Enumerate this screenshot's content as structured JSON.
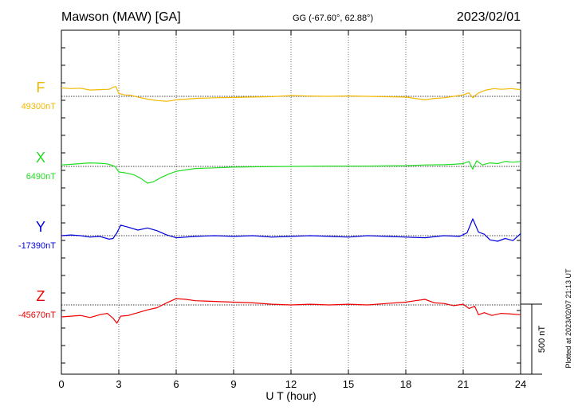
{
  "header": {
    "station": "Mawson (MAW)  [GA]",
    "coords": "GG (-67.60°,  62.88°)",
    "date": "2023/02/01"
  },
  "footer_note": "Plotted at 2023/02/07 21:13 UT",
  "chart_data": {
    "type": "line",
    "xlabel": "U T (hour)",
    "xlim": [
      0,
      24
    ],
    "x_ticks": [
      "0",
      "3",
      "6",
      "9",
      "12",
      "15",
      "18",
      "21",
      "24"
    ],
    "grid": "dotted vertical every 3 h",
    "scale_bar": {
      "value": 500,
      "label": "500 nT"
    },
    "series": [
      {
        "name": "F",
        "baseline_label": "49300nT",
        "baseline_nT": 49300,
        "color": "#f2b800",
        "x": [
          0,
          0.5,
          1,
          1.5,
          2,
          2.5,
          2.7,
          2.85,
          3,
          3.3,
          3.6,
          4,
          4.5,
          5,
          5.5,
          5.8,
          6,
          7,
          8,
          9,
          10,
          11,
          12,
          13,
          14,
          15,
          16,
          17,
          18,
          18.5,
          19,
          19.5,
          20,
          20.5,
          21,
          21.3,
          21.5,
          21.7,
          21.9,
          22.2,
          22.6,
          23,
          23.5,
          24
        ],
        "values": [
          60,
          55,
          58,
          45,
          48,
          50,
          65,
          70,
          20,
          10,
          8,
          -5,
          -20,
          -30,
          -35,
          -30,
          -25,
          -15,
          -10,
          -8,
          -5,
          -2,
          5,
          2,
          0,
          3,
          0,
          -3,
          -5,
          -15,
          -25,
          -15,
          -10,
          0,
          10,
          25,
          -10,
          15,
          30,
          45,
          55,
          50,
          55,
          48
        ]
      },
      {
        "name": "X",
        "baseline_label": "6490nT",
        "baseline_nT": 6490,
        "color": "#22dd22",
        "x": [
          0,
          0.5,
          1,
          1.5,
          2,
          2.4,
          2.8,
          3,
          3.3,
          3.8,
          4.2,
          4.5,
          4.8,
          5.2,
          5.6,
          6,
          6.5,
          7,
          8,
          9,
          10,
          12,
          14,
          16,
          18,
          19,
          20,
          20.5,
          21,
          21.3,
          21.5,
          21.7,
          22,
          22.4,
          22.8,
          23.2,
          23.6,
          24
        ],
        "values": [
          10,
          15,
          20,
          25,
          22,
          18,
          0,
          -40,
          -45,
          -60,
          -90,
          -120,
          -110,
          -80,
          -55,
          -35,
          -25,
          -15,
          -10,
          -5,
          -3,
          0,
          2,
          2,
          5,
          10,
          12,
          15,
          20,
          35,
          -20,
          40,
          10,
          25,
          20,
          35,
          30,
          35
        ]
      },
      {
        "name": "Y",
        "baseline_label": "-17390nT",
        "baseline_nT": -17390,
        "color": "#0000dd",
        "x": [
          0,
          0.5,
          1,
          1.5,
          2,
          2.5,
          2.7,
          2.9,
          3.1,
          3.5,
          4,
          4.5,
          5,
          5.5,
          6,
          6.5,
          7,
          8,
          9,
          10,
          11,
          12,
          13,
          14,
          15,
          16,
          17,
          18,
          19,
          20,
          20.8,
          21.2,
          21.5,
          21.8,
          22.1,
          22.4,
          22.8,
          23.2,
          23.6,
          24
        ],
        "values": [
          0,
          5,
          0,
          -10,
          -5,
          -25,
          -20,
          20,
          75,
          60,
          40,
          55,
          35,
          5,
          -15,
          -10,
          -5,
          0,
          -5,
          0,
          -10,
          -5,
          0,
          -5,
          -10,
          0,
          -5,
          -10,
          -15,
          0,
          -5,
          20,
          120,
          25,
          10,
          -30,
          -40,
          -20,
          -35,
          15
        ]
      },
      {
        "name": "Z",
        "baseline_label": "-45670nT",
        "baseline_nT": -45670,
        "color": "#ee0000",
        "x": [
          0,
          0.5,
          1,
          1.5,
          2,
          2.4,
          2.7,
          2.9,
          3.1,
          3.5,
          4,
          4.5,
          5,
          5.5,
          6,
          6.5,
          7,
          8,
          9,
          10,
          11,
          12,
          13,
          14,
          15,
          16,
          17,
          18,
          18.5,
          19,
          19.5,
          20,
          20.5,
          21,
          21.3,
          21.6,
          21.8,
          22.1,
          22.5,
          23,
          23.5,
          24
        ],
        "values": [
          -85,
          -80,
          -75,
          -90,
          -70,
          -60,
          -95,
          -130,
          -80,
          -75,
          -55,
          -35,
          -20,
          15,
          45,
          40,
          30,
          25,
          20,
          15,
          5,
          0,
          5,
          0,
          5,
          0,
          10,
          20,
          30,
          40,
          15,
          10,
          -5,
          5,
          -25,
          -10,
          -70,
          -55,
          -75,
          -60,
          -65,
          -70
        ]
      }
    ]
  },
  "colors": {
    "background": "#ffffff",
    "axes": "#000000"
  }
}
